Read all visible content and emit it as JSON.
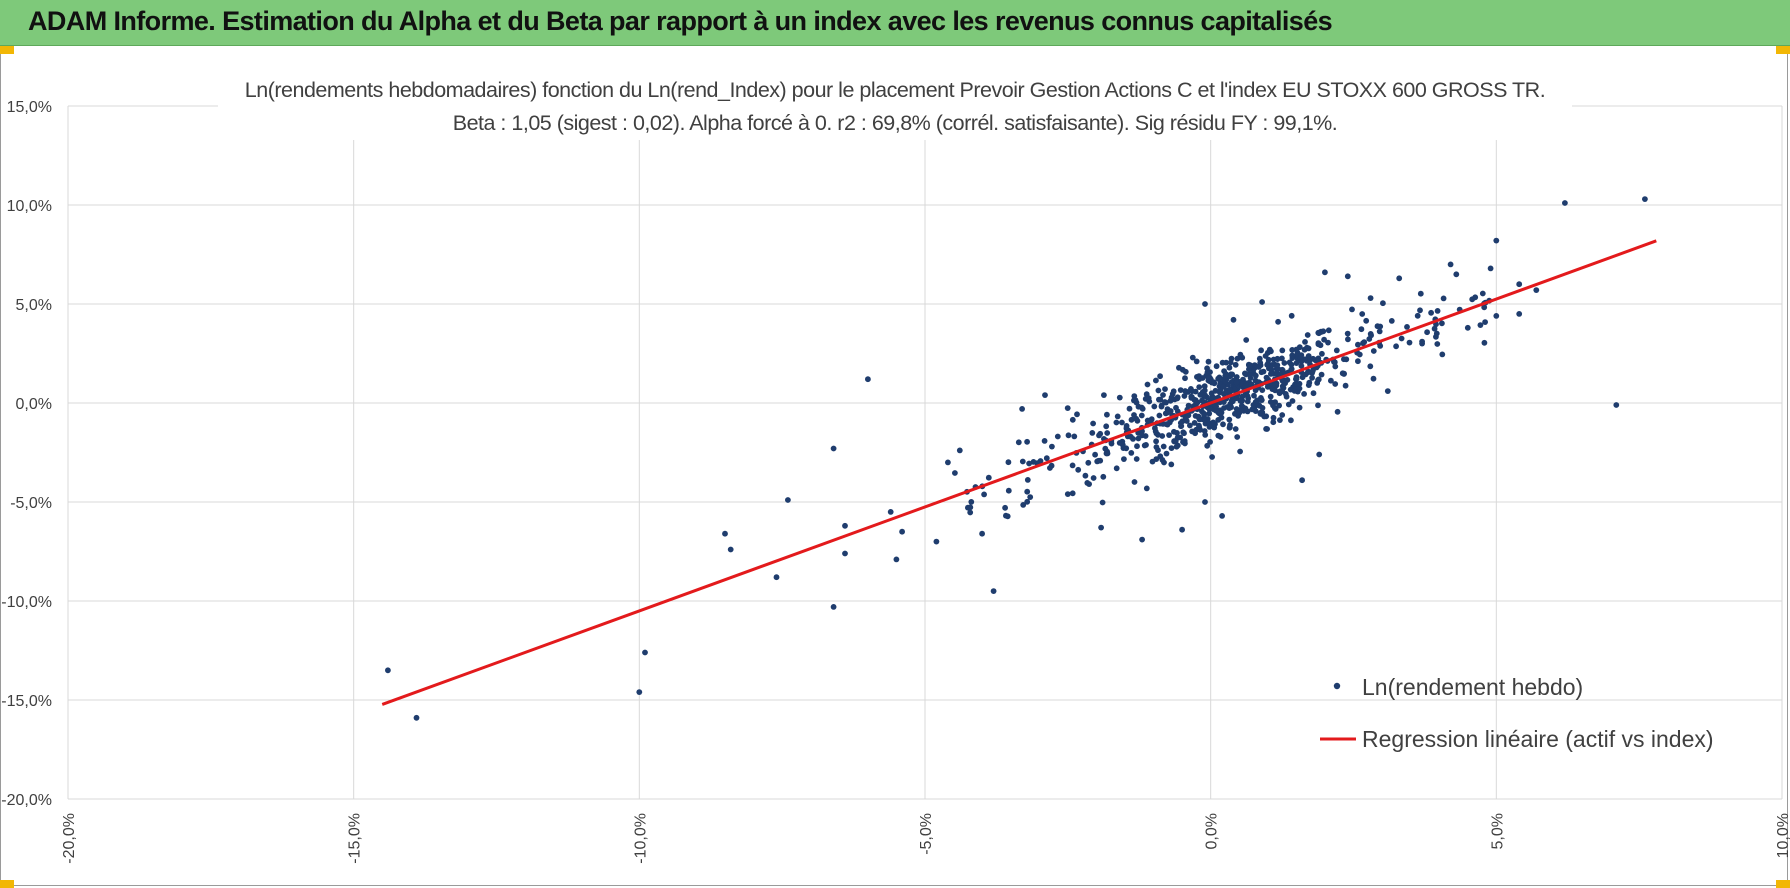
{
  "header": {
    "title": "ADAM Informe. Estimation du Alpha et du Beta par rapport à un index avec les revenus connus capitalisés"
  },
  "colors": {
    "header_bg": "#7ec97a",
    "corner_accent": "#f2b705",
    "points": "#1f3d6e",
    "regression": "#e31a1c",
    "grid": "#d9d9d9"
  },
  "chart_data": {
    "type": "scatter",
    "title": "Ln(rendements hebdomadaires) fonction du Ln(rend_Index) pour le placement Prevoir Gestion Actions C et l'index EU STOXX 600 GROSS TR.",
    "subtitle": "Beta : 1,05 (sigest : 0,02). Alpha forcé à 0. r2 : 69,8% (corrél. satisfaisante). Sig résidu FY : 99,1%.",
    "xlabel": "",
    "ylabel": "",
    "xlim": [
      -20,
      10
    ],
    "ylim": [
      -20,
      15
    ],
    "x_ticks": [
      "-20,0%",
      "-15,0%",
      "-10,0%",
      "-5,0%",
      "0,0%",
      "5,0%",
      "10,0%"
    ],
    "y_ticks": [
      "15,0%",
      "10,0%",
      "5,0%",
      "0,0%",
      "-5,0%",
      "-10,0%",
      "-15,0%",
      "-20,0%"
    ],
    "grid": true,
    "legend_position": "bottom-right",
    "legend": [
      "Ln(rendement hebdo)",
      "Regression linéaire (actif vs index)"
    ],
    "regression": {
      "name": "Regression linéaire (actif vs index)",
      "beta": 1.05,
      "alpha": 0,
      "x_range": [
        -14.5,
        7.8
      ]
    },
    "series": [
      {
        "name": "Ln(rendement hebdo)",
        "note_points": "outliers listed explicitly; central cloud approximated",
        "points": [
          [
            -14.4,
            -13.5
          ],
          [
            -13.9,
            -15.9
          ],
          [
            -10.0,
            -14.6
          ],
          [
            -9.9,
            -12.6
          ],
          [
            -8.5,
            -6.6
          ],
          [
            -8.4,
            -7.4
          ],
          [
            -7.6,
            -8.8
          ],
          [
            -7.4,
            -4.9
          ],
          [
            -6.6,
            -2.3
          ],
          [
            -6.6,
            -10.3
          ],
          [
            -6.4,
            -6.2
          ],
          [
            -6.4,
            -7.6
          ],
          [
            -6.0,
            1.2
          ],
          [
            -5.6,
            -5.5
          ],
          [
            -5.5,
            -7.9
          ],
          [
            -5.4,
            -6.5
          ],
          [
            -4.8,
            -7.0
          ],
          [
            -4.6,
            -3.0
          ],
          [
            -4.0,
            -6.6
          ],
          [
            -3.8,
            -9.5
          ],
          [
            -3.3,
            -0.3
          ],
          [
            -2.9,
            0.4
          ],
          [
            -2.5,
            -4.6
          ],
          [
            -1.2,
            -6.9
          ],
          [
            -0.8,
            0.7
          ],
          [
            -0.5,
            -6.4
          ],
          [
            -0.1,
            -5.0
          ],
          [
            -0.1,
            5.0
          ],
          [
            0.2,
            -5.7
          ],
          [
            0.4,
            4.2
          ],
          [
            0.9,
            5.1
          ],
          [
            1.5,
            2.7
          ],
          [
            1.6,
            -3.9
          ],
          [
            1.9,
            -2.6
          ],
          [
            2.0,
            6.6
          ],
          [
            2.4,
            6.4
          ],
          [
            2.8,
            5.3
          ],
          [
            3.1,
            0.6
          ],
          [
            3.3,
            6.3
          ],
          [
            3.7,
            3.0
          ],
          [
            4.2,
            7.0
          ],
          [
            4.3,
            6.5
          ],
          [
            4.5,
            3.8
          ],
          [
            4.9,
            6.8
          ],
          [
            5.0,
            8.2
          ],
          [
            5.0,
            4.4
          ],
          [
            5.4,
            6.0
          ],
          [
            5.4,
            4.5
          ],
          [
            5.7,
            5.7
          ],
          [
            6.2,
            10.1
          ],
          [
            7.1,
            -0.1
          ],
          [
            7.6,
            10.3
          ]
        ]
      }
    ]
  }
}
